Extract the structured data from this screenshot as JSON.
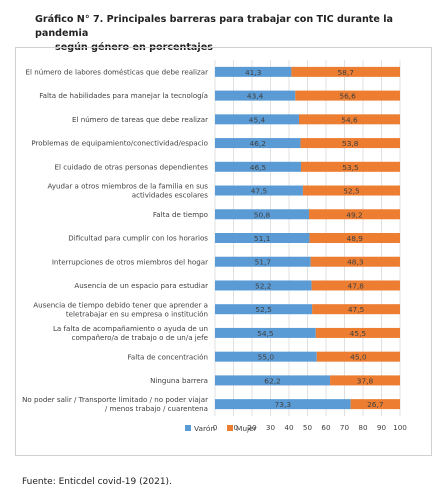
{
  "title_line1": "Gráfico N° 7. Principales barreras para trabajar con TIC durante la pandemia",
  "title_line2": "según género en porcentajes",
  "source": "Fuente: Enticdel covid-19 (2021).",
  "chart_data": {
    "type": "bar",
    "orientation": "horizontal",
    "stacked": true,
    "categories": [
      "El número de labores domésticas que debe realizar",
      "Falta de habilidades para manejar la tecnología",
      "El número de tareas que debe realizar",
      "Problemas de equipamiento/conectividad/espacio",
      "El cuidado de otras personas dependientes",
      "Ayudar a otros miembros de la familia en sus actividades escolares",
      "Falta de tiempo",
      "Dificultad para cumplir con los horarios",
      "Interrupciones de otros miembros del hogar",
      "Ausencia de un espacio para estudiar",
      "Ausencia de tiempo debido tener que aprender a teletrabajar en su empresa o institución",
      "La falta de acompañamiento o ayuda de un compañero/a de trabajo o de un/a jefe",
      "Falta de concentración",
      "Ninguna barrera",
      "No poder salir / Transporte limitado / no poder viajar / menos trabajo / cuarentena"
    ],
    "category_lines": [
      [
        "El número de labores domésticas que debe realizar"
      ],
      [
        "Falta de habilidades para manejar la tecnología"
      ],
      [
        "El número de tareas que debe realizar"
      ],
      [
        "Problemas de equipamiento/conectividad/espacio"
      ],
      [
        "El cuidado de otras personas dependientes"
      ],
      [
        "Ayudar a otros miembros de la familia en sus",
        "actividades escolares"
      ],
      [
        "Falta de tiempo"
      ],
      [
        "Dificultad para cumplir con los horarios"
      ],
      [
        "Interrupciones de otros miembros del hogar"
      ],
      [
        "Ausencia de un espacio para estudiar"
      ],
      [
        "Ausencia de tiempo debido tener que aprender a",
        "teletrabajar en su empresa o institución"
      ],
      [
        "La falta de acompañamiento o ayuda de un",
        "compañero/a de trabajo o de un/a jefe"
      ],
      [
        "Falta de concentración"
      ],
      [
        "Ninguna barrera"
      ],
      [
        "No poder salir / Transporte limitado / no poder viajar",
        "/ menos trabajo / cuarentena"
      ]
    ],
    "series": [
      {
        "name": "Varón",
        "color": "#5b9bd5",
        "values": [
          41.3,
          43.4,
          45.4,
          46.2,
          46.5,
          47.5,
          50.8,
          51.1,
          51.7,
          52.2,
          52.5,
          54.5,
          55.0,
          62.2,
          73.3
        ],
        "labels": [
          "41,3",
          "43,4",
          "45,4",
          "46,2",
          "46,5",
          "47,5",
          "50,8",
          "51,1",
          "51,7",
          "52,2",
          "52,5",
          "54,5",
          "55,0",
          "62,2",
          "73,3"
        ]
      },
      {
        "name": "Mujer",
        "color": "#ed7d31",
        "values": [
          58.7,
          56.6,
          54.6,
          53.8,
          53.5,
          52.5,
          49.2,
          48.9,
          48.3,
          47.8,
          47.5,
          45.5,
          45.0,
          37.8,
          26.7
        ],
        "labels": [
          "58,7",
          "56,6",
          "54,6",
          "53,8",
          "53,5",
          "52,5",
          "49,2",
          "48,9",
          "48,3",
          "47,8",
          "47,5",
          "45,5",
          "45,0",
          "37,8",
          "26,7"
        ]
      }
    ],
    "xlim": [
      0,
      100
    ],
    "xticks": [
      0,
      10,
      20,
      30,
      40,
      50,
      60,
      70,
      80,
      90,
      100
    ],
    "grid": true,
    "legend_position": "bottom"
  }
}
